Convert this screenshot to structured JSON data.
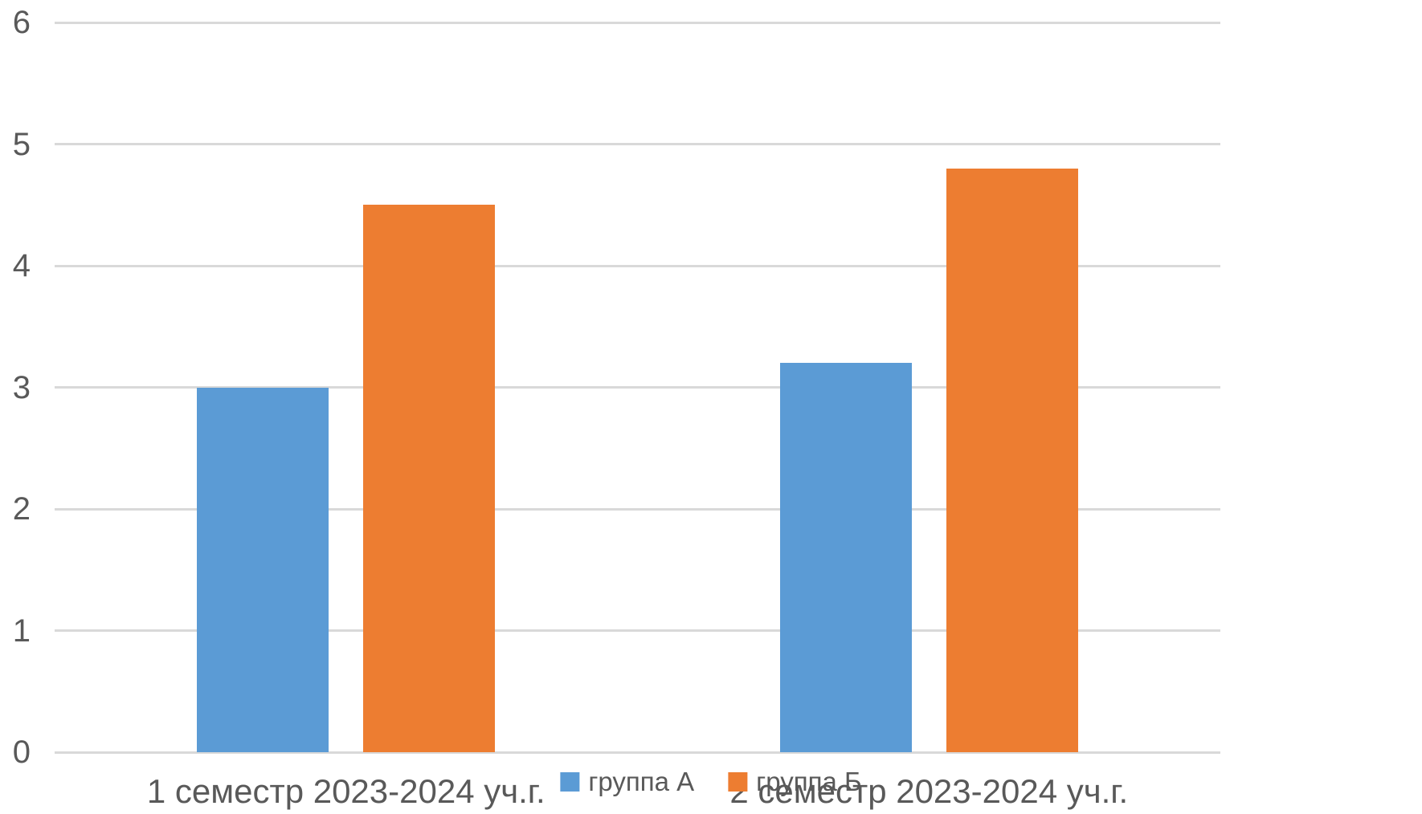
{
  "chart_data": {
    "type": "bar",
    "title": "",
    "xlabel": "",
    "ylabel": "",
    "categories": [
      "1 семестр 2023-2024 уч.г.",
      "2 семестр 2023-2024 уч.г."
    ],
    "series": [
      {
        "name": "группа А",
        "color": "#5B9BD5",
        "values": [
          3.0,
          3.2
        ]
      },
      {
        "name": "группа Б",
        "color": "#ED7D31",
        "values": [
          4.5,
          4.8
        ]
      }
    ],
    "ylim": [
      0,
      6
    ],
    "yticks": [
      0,
      1,
      2,
      3,
      4,
      5,
      6
    ],
    "grid": "horizontal",
    "legend_position": "bottom",
    "colors": {
      "gridline": "#D9D9D9",
      "axis_text": "#595959",
      "background": "#FFFFFF"
    }
  }
}
